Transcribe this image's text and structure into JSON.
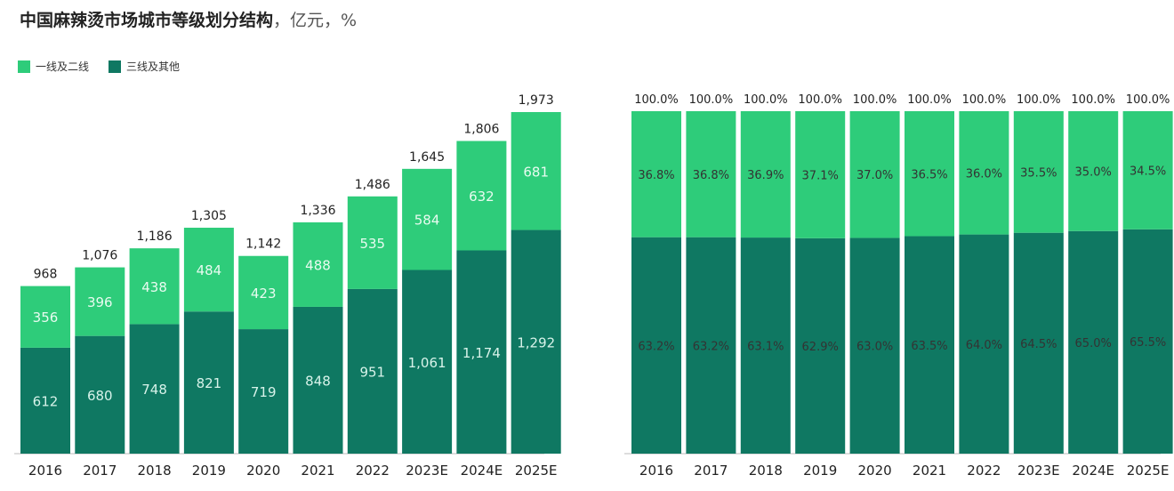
{
  "title": {
    "main": "中国麻辣烫市场城市等级划分结构",
    "units": "，亿元，%"
  },
  "legend": [
    {
      "label": "一线及二线",
      "color": "#2ecc7a"
    },
    {
      "label": "三线及其他",
      "color": "#0f7862"
    }
  ],
  "chart_data": [
    {
      "type": "bar",
      "stacked": true,
      "categories": [
        "2016",
        "2017",
        "2018",
        "2019",
        "2020",
        "2021",
        "2022",
        "2023E",
        "2024E",
        "2025E"
      ],
      "series": [
        {
          "name": "三线及其他",
          "values": [
            612,
            680,
            748,
            821,
            719,
            848,
            951,
            1061,
            1174,
            1292
          ]
        },
        {
          "name": "一线及二线",
          "values": [
            356,
            396,
            438,
            484,
            423,
            488,
            535,
            584,
            632,
            681
          ]
        }
      ],
      "totals": [
        "968",
        "1,076",
        "1,186",
        "1,305",
        "1,142",
        "1,336",
        "1,486",
        "1,645",
        "1,806",
        "1,973"
      ],
      "bottom_labels": [
        "612",
        "680",
        "748",
        "821",
        "719",
        "848",
        "951",
        "1,061",
        "1,174",
        "1,292"
      ],
      "top_labels": [
        "356",
        "396",
        "438",
        "484",
        "423",
        "488",
        "535",
        "584",
        "632",
        "681"
      ],
      "ylim": [
        0,
        1973
      ],
      "grid": false
    },
    {
      "type": "bar",
      "stacked": true,
      "percent": true,
      "categories": [
        "2016",
        "2017",
        "2018",
        "2019",
        "2020",
        "2021",
        "2022",
        "2023E",
        "2024E",
        "2025E"
      ],
      "series": [
        {
          "name": "三线及其他",
          "values": [
            63.2,
            63.2,
            63.1,
            62.9,
            63.0,
            63.5,
            64.0,
            64.5,
            65.0,
            65.5
          ]
        },
        {
          "name": "一线及二线",
          "values": [
            36.8,
            36.8,
            36.9,
            37.1,
            37.0,
            36.5,
            36.0,
            35.5,
            35.0,
            34.5
          ]
        }
      ],
      "bottom_labels": [
        "63.2%",
        "63.2%",
        "63.1%",
        "62.9%",
        "63.0%",
        "63.5%",
        "64.0%",
        "64.5%",
        "65.0%",
        "65.5%"
      ],
      "top_labels": [
        "36.8%",
        "36.8%",
        "36.9%",
        "37.1%",
        "37.0%",
        "36.5%",
        "36.0%",
        "35.5%",
        "35.0%",
        "34.5%"
      ],
      "totals": [
        "100.0%",
        "100.0%",
        "100.0%",
        "100.0%",
        "100.0%",
        "100.0%",
        "100.0%",
        "100.0%",
        "100.0%",
        "100.0%"
      ],
      "ylim": [
        0,
        100
      ],
      "grid": false
    }
  ]
}
